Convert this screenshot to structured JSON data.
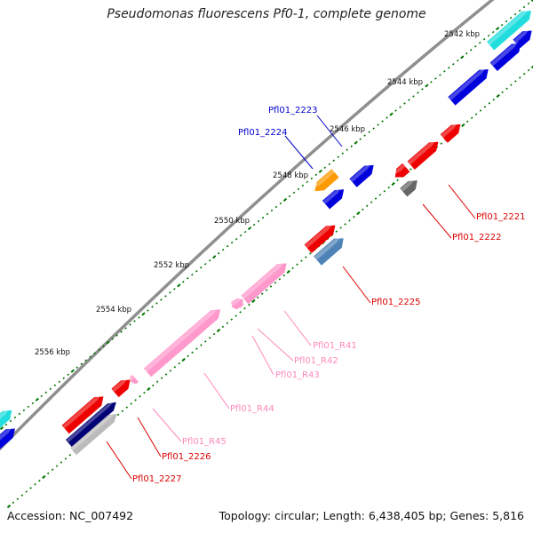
{
  "title": "Pseudomonas fluorescens Pf0-1, complete genome",
  "footer": {
    "accession": "Accession: NC_007492",
    "topology": "Topology: circular; Length: 6,438,405 bp; Genes: 5,816"
  },
  "kbp_labels": [
    "2542 kbp",
    "2544 kbp",
    "2546 kbp",
    "2548 kbp",
    "2550 kbp",
    "2552 kbp",
    "2554 kbp",
    "2556 kbp"
  ],
  "colors": {
    "backbone": "#8f8f8f",
    "red": "#ee0000",
    "blue": "#0000dd",
    "cyan": "#22dddd",
    "orange": "#ff9900",
    "steelblue": "#4f83b8",
    "gray": "#666666",
    "pink": "#ff99cc",
    "navy": "#000077",
    "lightgray": "#bbbbbb",
    "tick_green": "#007700"
  },
  "features": [
    {
      "name": "cyan-gene-top",
      "color": "cyan"
    },
    {
      "name": "blue-gene-top-1",
      "color": "blue"
    },
    {
      "name": "blue-gene-top-2",
      "color": "blue"
    },
    {
      "name": "blue-gene-top-3",
      "color": "blue"
    },
    {
      "name": "Pfl01_2223",
      "color": "blue"
    },
    {
      "name": "Pfl01_2224",
      "color": "orange"
    },
    {
      "name": "blue-gene-mid",
      "color": "blue"
    },
    {
      "name": "red-gene-1",
      "color": "red"
    },
    {
      "name": "Pfl01_2221",
      "color": "red"
    },
    {
      "name": "Pfl01_2222",
      "color": "gray"
    },
    {
      "name": "red-gene-mid",
      "color": "red"
    },
    {
      "name": "Pfl01_2225",
      "color": "steelblue"
    },
    {
      "name": "Pfl01_R41",
      "color": "pink"
    },
    {
      "name": "Pfl01_R42",
      "color": "pink"
    },
    {
      "name": "Pfl01_R43",
      "color": "pink"
    },
    {
      "name": "Pfl01_R44",
      "color": "pink"
    },
    {
      "name": "Pfl01_R45",
      "color": "pink"
    },
    {
      "name": "Pfl01_2226",
      "color": "red"
    },
    {
      "name": "Pfl01_2227",
      "color": "navy"
    },
    {
      "name": "lightgray-gene",
      "color": "lightgray"
    },
    {
      "name": "cyan-gene-left",
      "color": "cyan"
    },
    {
      "name": "blue-gene-left",
      "color": "blue"
    }
  ],
  "labels": [
    {
      "text": "Pfl01_2223",
      "color": "blue"
    },
    {
      "text": "Pfl01_2224",
      "color": "blue"
    },
    {
      "text": "Pfl01_2221",
      "color": "red"
    },
    {
      "text": "Pfl01_2222",
      "color": "red"
    },
    {
      "text": "Pfl01_2225",
      "color": "red"
    },
    {
      "text": "Pfl01_R41",
      "color": "pink"
    },
    {
      "text": "Pfl01_R42",
      "color": "pink"
    },
    {
      "text": "Pfl01_R43",
      "color": "pink"
    },
    {
      "text": "Pfl01_R44",
      "color": "pink"
    },
    {
      "text": "Pfl01_R45",
      "color": "pink"
    },
    {
      "text": "Pfl01_2226",
      "color": "red"
    },
    {
      "text": "Pfl01_2227",
      "color": "red"
    }
  ]
}
